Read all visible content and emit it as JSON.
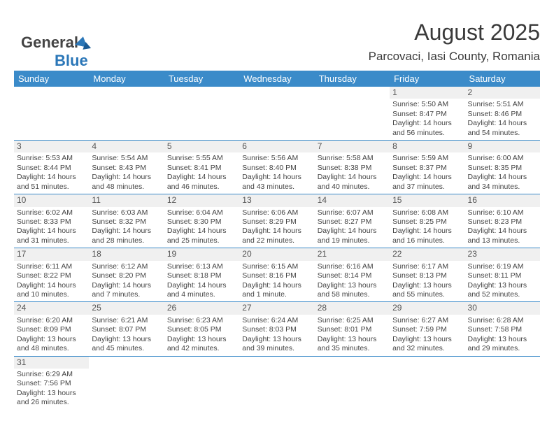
{
  "logo": {
    "text1": "General",
    "text2": "Blue"
  },
  "title": "August 2025",
  "subtitle": "Parcovaci, Iasi County, Romania",
  "colors": {
    "header_bg": "#3b8bc9",
    "header_text": "#ffffff",
    "daynum_bg": "#f0f0f0",
    "border": "#3b8bc9"
  },
  "day_headers": [
    "Sunday",
    "Monday",
    "Tuesday",
    "Wednesday",
    "Thursday",
    "Friday",
    "Saturday"
  ],
  "weeks": [
    [
      null,
      null,
      null,
      null,
      null,
      {
        "n": "1",
        "sr": "Sunrise: 5:50 AM",
        "ss": "Sunset: 8:47 PM",
        "dl1": "Daylight: 14 hours",
        "dl2": "and 56 minutes."
      },
      {
        "n": "2",
        "sr": "Sunrise: 5:51 AM",
        "ss": "Sunset: 8:46 PM",
        "dl1": "Daylight: 14 hours",
        "dl2": "and 54 minutes."
      }
    ],
    [
      {
        "n": "3",
        "sr": "Sunrise: 5:53 AM",
        "ss": "Sunset: 8:44 PM",
        "dl1": "Daylight: 14 hours",
        "dl2": "and 51 minutes."
      },
      {
        "n": "4",
        "sr": "Sunrise: 5:54 AM",
        "ss": "Sunset: 8:43 PM",
        "dl1": "Daylight: 14 hours",
        "dl2": "and 48 minutes."
      },
      {
        "n": "5",
        "sr": "Sunrise: 5:55 AM",
        "ss": "Sunset: 8:41 PM",
        "dl1": "Daylight: 14 hours",
        "dl2": "and 46 minutes."
      },
      {
        "n": "6",
        "sr": "Sunrise: 5:56 AM",
        "ss": "Sunset: 8:40 PM",
        "dl1": "Daylight: 14 hours",
        "dl2": "and 43 minutes."
      },
      {
        "n": "7",
        "sr": "Sunrise: 5:58 AM",
        "ss": "Sunset: 8:38 PM",
        "dl1": "Daylight: 14 hours",
        "dl2": "and 40 minutes."
      },
      {
        "n": "8",
        "sr": "Sunrise: 5:59 AM",
        "ss": "Sunset: 8:37 PM",
        "dl1": "Daylight: 14 hours",
        "dl2": "and 37 minutes."
      },
      {
        "n": "9",
        "sr": "Sunrise: 6:00 AM",
        "ss": "Sunset: 8:35 PM",
        "dl1": "Daylight: 14 hours",
        "dl2": "and 34 minutes."
      }
    ],
    [
      {
        "n": "10",
        "sr": "Sunrise: 6:02 AM",
        "ss": "Sunset: 8:33 PM",
        "dl1": "Daylight: 14 hours",
        "dl2": "and 31 minutes."
      },
      {
        "n": "11",
        "sr": "Sunrise: 6:03 AM",
        "ss": "Sunset: 8:32 PM",
        "dl1": "Daylight: 14 hours",
        "dl2": "and 28 minutes."
      },
      {
        "n": "12",
        "sr": "Sunrise: 6:04 AM",
        "ss": "Sunset: 8:30 PM",
        "dl1": "Daylight: 14 hours",
        "dl2": "and 25 minutes."
      },
      {
        "n": "13",
        "sr": "Sunrise: 6:06 AM",
        "ss": "Sunset: 8:29 PM",
        "dl1": "Daylight: 14 hours",
        "dl2": "and 22 minutes."
      },
      {
        "n": "14",
        "sr": "Sunrise: 6:07 AM",
        "ss": "Sunset: 8:27 PM",
        "dl1": "Daylight: 14 hours",
        "dl2": "and 19 minutes."
      },
      {
        "n": "15",
        "sr": "Sunrise: 6:08 AM",
        "ss": "Sunset: 8:25 PM",
        "dl1": "Daylight: 14 hours",
        "dl2": "and 16 minutes."
      },
      {
        "n": "16",
        "sr": "Sunrise: 6:10 AM",
        "ss": "Sunset: 8:23 PM",
        "dl1": "Daylight: 14 hours",
        "dl2": "and 13 minutes."
      }
    ],
    [
      {
        "n": "17",
        "sr": "Sunrise: 6:11 AM",
        "ss": "Sunset: 8:22 PM",
        "dl1": "Daylight: 14 hours",
        "dl2": "and 10 minutes."
      },
      {
        "n": "18",
        "sr": "Sunrise: 6:12 AM",
        "ss": "Sunset: 8:20 PM",
        "dl1": "Daylight: 14 hours",
        "dl2": "and 7 minutes."
      },
      {
        "n": "19",
        "sr": "Sunrise: 6:13 AM",
        "ss": "Sunset: 8:18 PM",
        "dl1": "Daylight: 14 hours",
        "dl2": "and 4 minutes."
      },
      {
        "n": "20",
        "sr": "Sunrise: 6:15 AM",
        "ss": "Sunset: 8:16 PM",
        "dl1": "Daylight: 14 hours",
        "dl2": "and 1 minute."
      },
      {
        "n": "21",
        "sr": "Sunrise: 6:16 AM",
        "ss": "Sunset: 8:14 PM",
        "dl1": "Daylight: 13 hours",
        "dl2": "and 58 minutes."
      },
      {
        "n": "22",
        "sr": "Sunrise: 6:17 AM",
        "ss": "Sunset: 8:13 PM",
        "dl1": "Daylight: 13 hours",
        "dl2": "and 55 minutes."
      },
      {
        "n": "23",
        "sr": "Sunrise: 6:19 AM",
        "ss": "Sunset: 8:11 PM",
        "dl1": "Daylight: 13 hours",
        "dl2": "and 52 minutes."
      }
    ],
    [
      {
        "n": "24",
        "sr": "Sunrise: 6:20 AM",
        "ss": "Sunset: 8:09 PM",
        "dl1": "Daylight: 13 hours",
        "dl2": "and 48 minutes."
      },
      {
        "n": "25",
        "sr": "Sunrise: 6:21 AM",
        "ss": "Sunset: 8:07 PM",
        "dl1": "Daylight: 13 hours",
        "dl2": "and 45 minutes."
      },
      {
        "n": "26",
        "sr": "Sunrise: 6:23 AM",
        "ss": "Sunset: 8:05 PM",
        "dl1": "Daylight: 13 hours",
        "dl2": "and 42 minutes."
      },
      {
        "n": "27",
        "sr": "Sunrise: 6:24 AM",
        "ss": "Sunset: 8:03 PM",
        "dl1": "Daylight: 13 hours",
        "dl2": "and 39 minutes."
      },
      {
        "n": "28",
        "sr": "Sunrise: 6:25 AM",
        "ss": "Sunset: 8:01 PM",
        "dl1": "Daylight: 13 hours",
        "dl2": "and 35 minutes."
      },
      {
        "n": "29",
        "sr": "Sunrise: 6:27 AM",
        "ss": "Sunset: 7:59 PM",
        "dl1": "Daylight: 13 hours",
        "dl2": "and 32 minutes."
      },
      {
        "n": "30",
        "sr": "Sunrise: 6:28 AM",
        "ss": "Sunset: 7:58 PM",
        "dl1": "Daylight: 13 hours",
        "dl2": "and 29 minutes."
      }
    ],
    [
      {
        "n": "31",
        "sr": "Sunrise: 6:29 AM",
        "ss": "Sunset: 7:56 PM",
        "dl1": "Daylight: 13 hours",
        "dl2": "and 26 minutes."
      },
      null,
      null,
      null,
      null,
      null,
      null
    ]
  ]
}
